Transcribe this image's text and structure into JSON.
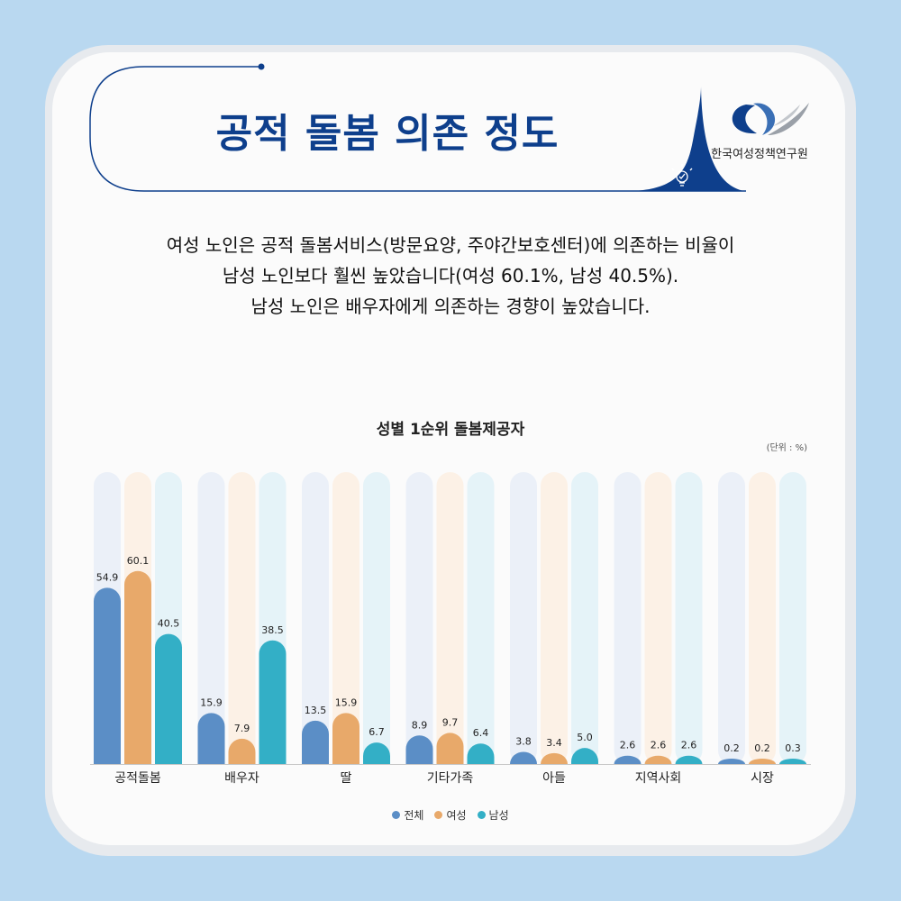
{
  "header": {
    "title": "공적 돌봄 의존 정도",
    "org_name": "한국여성정책연구원",
    "accent_color": "#0e3f8c"
  },
  "description": {
    "lines": [
      "여성 노인은 공적 돌봄서비스(방문요양, 주야간보호센터)에 의존하는 비율이",
      "남성 노인보다 훨씬 높았습니다(여성 60.1%, 남성 40.5%).",
      "남성 노인은 배우자에게 의존하는 경향이 높았습니다."
    ]
  },
  "chart_data": {
    "type": "bar",
    "title": "성별 1순위 돌봄제공자",
    "unit_label": "(단위 : %)",
    "categories": [
      "공적돌봄",
      "배우자",
      "딸",
      "기타가족",
      "아들",
      "지역사회",
      "시장"
    ],
    "series": [
      {
        "name": "전체",
        "color": "#5b8ec6",
        "track_color": "#ebf0f8",
        "values": [
          54.9,
          15.9,
          13.5,
          8.9,
          3.8,
          2.6,
          0.2
        ]
      },
      {
        "name": "여성",
        "color": "#e8a96a",
        "track_color": "#fcf1e6",
        "values": [
          60.1,
          7.9,
          15.9,
          9.7,
          3.4,
          2.6,
          0.2
        ]
      },
      {
        "name": "남성",
        "color": "#33afc6",
        "track_color": "#e5f3f8",
        "values": [
          40.5,
          38.5,
          6.7,
          6.4,
          5.0,
          2.6,
          0.3
        ]
      }
    ],
    "value_labels": [
      [
        "54.9",
        "15.9",
        "13.5",
        "8.9",
        "3.8",
        "2.6",
        "0.2"
      ],
      [
        "60.1",
        "7.9",
        "15.9",
        "9.7",
        "3.4",
        "2.6",
        "0.2"
      ],
      [
        "40.5",
        "38.5",
        "6.7",
        "6.4",
        "5.0",
        "2.6",
        "0.3"
      ]
    ],
    "ylim": [
      0,
      100
    ],
    "grid": false,
    "legend_position": "bottom-center"
  }
}
